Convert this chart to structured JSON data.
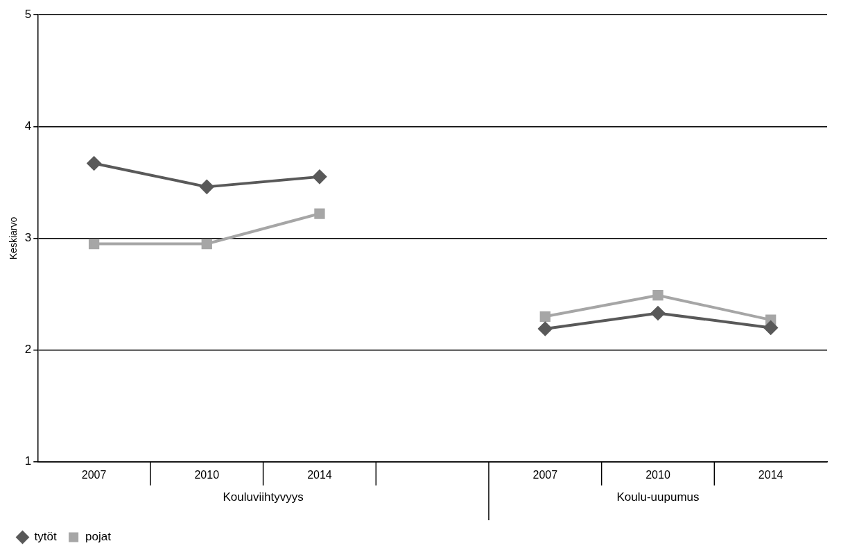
{
  "chart_data": {
    "type": "line",
    "ylabel": "Keskiarvo",
    "categories": [
      "2007",
      "2010",
      "2014",
      null,
      "2007",
      "2010",
      "2014"
    ],
    "annotations": [
      "Kouluviihtyvyys",
      "Koulu-uupumus"
    ],
    "series": [
      {
        "name": "tytöt",
        "color": "#595959",
        "marker": "diamond",
        "values": [
          3.67,
          3.46,
          3.55,
          null,
          2.19,
          2.33,
          2.2
        ]
      },
      {
        "name": "pojat",
        "color": "#a6a6a6",
        "marker": "square",
        "values": [
          2.95,
          2.95,
          3.22,
          null,
          2.3,
          2.49,
          2.27
        ]
      }
    ],
    "ylim": [
      1,
      5
    ],
    "yticks": [
      1,
      2,
      3,
      4,
      5
    ],
    "grid": "y",
    "legend": "bottom left",
    "line_style": "solid"
  }
}
